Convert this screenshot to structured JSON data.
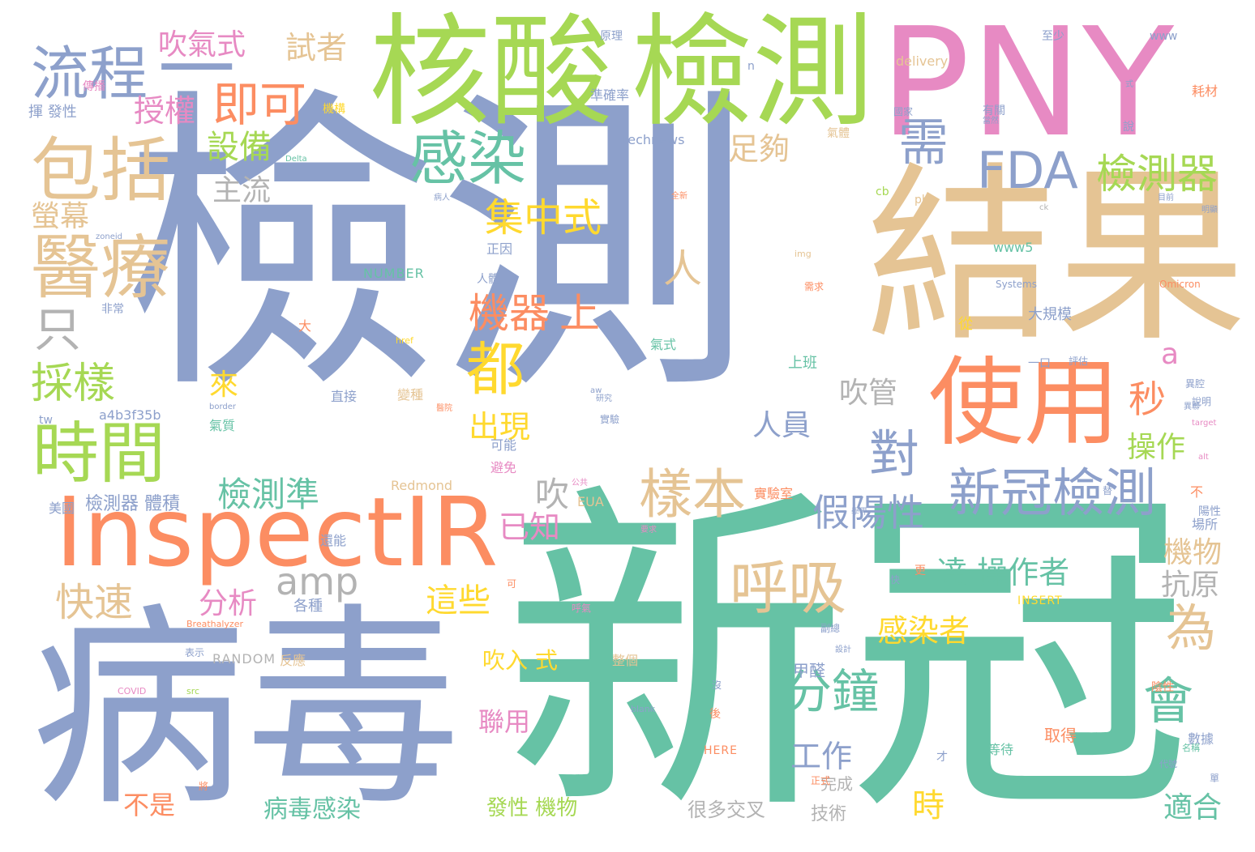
{
  "palette": {
    "blue": "#8da0cb",
    "green": "#66c2a5",
    "orange": "#fc8d62",
    "lime": "#a6d854",
    "tan": "#e5c494",
    "pink": "#e78ac3",
    "yellow": "#ffd92f",
    "gray": "#b3b3b3"
  },
  "words": [
    {
      "text": "檢測",
      "color": "blue"
    },
    {
      "text": "新冠",
      "color": "green"
    },
    {
      "text": "病毒",
      "color": "blue"
    },
    {
      "text": "結果",
      "color": "tan"
    },
    {
      "text": "PNY",
      "color": "pink"
    },
    {
      "text": "核酸",
      "color": "lime"
    },
    {
      "text": "檢測",
      "color": "lime"
    },
    {
      "text": "InspectIR",
      "color": "orange"
    },
    {
      "text": "使用",
      "color": "orange"
    },
    {
      "text": "包括",
      "color": "tan"
    },
    {
      "text": "醫療",
      "color": "tan"
    },
    {
      "text": "流程",
      "color": "blue"
    },
    {
      "text": "一",
      "color": "blue"
    },
    {
      "text": "時間",
      "color": "lime"
    },
    {
      "text": "新冠檢測",
      "color": "blue"
    },
    {
      "text": "感染",
      "color": "green"
    },
    {
      "text": "FDA",
      "color": "blue"
    },
    {
      "text": "檢測器",
      "color": "lime"
    },
    {
      "text": "樣本",
      "color": "tan"
    },
    {
      "text": "呼吸",
      "color": "tan"
    },
    {
      "text": "分鐘",
      "color": "green"
    },
    {
      "text": "即可",
      "color": "orange"
    },
    {
      "text": "需",
      "color": "blue"
    },
    {
      "text": "都",
      "color": "yellow"
    },
    {
      "text": "對",
      "color": "blue"
    },
    {
      "text": "會",
      "color": "green"
    },
    {
      "text": "為",
      "color": "tan"
    },
    {
      "text": "只",
      "color": "gray"
    },
    {
      "text": "人",
      "color": "tan"
    },
    {
      "text": "集中式",
      "color": "yellow"
    },
    {
      "text": "機器",
      "color": "orange"
    },
    {
      "text": "上",
      "color": "orange"
    },
    {
      "text": "採樣",
      "color": "lime"
    },
    {
      "text": "快速",
      "color": "tan"
    },
    {
      "text": "amp",
      "color": "gray"
    },
    {
      "text": "假陽性",
      "color": "blue"
    },
    {
      "text": "檢測準",
      "color": "green"
    },
    {
      "text": "吹氣式",
      "color": "pink"
    },
    {
      "text": "試者",
      "color": "tan"
    },
    {
      "text": "授權",
      "color": "pink"
    },
    {
      "text": "設備",
      "color": "lime"
    },
    {
      "text": "足夠",
      "color": "tan"
    },
    {
      "text": "主流",
      "color": "gray"
    },
    {
      "text": "螢幕",
      "color": "tan"
    },
    {
      "text": "秒",
      "color": "orange"
    },
    {
      "text": "已知",
      "color": "pink"
    },
    {
      "text": "出現",
      "color": "yellow"
    },
    {
      "text": "吹",
      "color": "gray"
    },
    {
      "text": "吹管",
      "color": "gray"
    },
    {
      "text": "人員",
      "color": "blue"
    },
    {
      "text": "來",
      "color": "yellow"
    },
    {
      "text": "分析",
      "color": "pink"
    },
    {
      "text": "達 操作者",
      "color": "green"
    },
    {
      "text": "機物",
      "color": "tan"
    },
    {
      "text": "抗原",
      "color": "gray"
    },
    {
      "text": "這些",
      "color": "yellow"
    },
    {
      "text": "感染者",
      "color": "yellow"
    },
    {
      "text": "操作",
      "color": "lime"
    },
    {
      "text": "a",
      "color": "pink"
    },
    {
      "text": "工作",
      "color": "blue"
    },
    {
      "text": "不是",
      "color": "orange"
    },
    {
      "text": "病毒感染",
      "color": "green"
    },
    {
      "text": "時",
      "color": "yellow"
    },
    {
      "text": "適合",
      "color": "green"
    },
    {
      "text": "聯用",
      "color": "pink"
    },
    {
      "text": "吹入 式",
      "color": "yellow"
    },
    {
      "text": "發性 機物",
      "color": "lime"
    },
    {
      "text": "很多交叉",
      "color": "gray"
    },
    {
      "text": "技術",
      "color": "gray"
    },
    {
      "text": "完成",
      "color": "gray"
    },
    {
      "text": "甲醛",
      "color": "blue"
    },
    {
      "text": "RANDOM",
      "color": "gray"
    },
    {
      "text": "NUMBER",
      "color": "green"
    },
    {
      "text": "Redmond",
      "color": "tan"
    },
    {
      "text": "EUA",
      "color": "tan"
    },
    {
      "text": "INSERT",
      "color": "yellow"
    },
    {
      "text": "HERE",
      "color": "orange"
    },
    {
      "text": "technews",
      "color": "blue"
    },
    {
      "text": "delivery",
      "color": "tan"
    },
    {
      "text": "www",
      "color": "blue"
    },
    {
      "text": "www5",
      "color": "green"
    },
    {
      "text": "Systems",
      "color": "blue"
    },
    {
      "text": "Omicron",
      "color": "orange"
    },
    {
      "text": "a4b3f35b",
      "color": "blue"
    },
    {
      "text": "Breathalyzer",
      "color": "orange"
    },
    {
      "text": "COVID",
      "color": "pink"
    },
    {
      "text": "src",
      "color": "lime"
    },
    {
      "text": "blank",
      "color": "blue"
    },
    {
      "text": "php",
      "color": "tan"
    },
    {
      "text": "img",
      "color": "tan"
    },
    {
      "text": "href",
      "color": "yellow"
    },
    {
      "text": "border",
      "color": "blue"
    },
    {
      "text": "zoneid",
      "color": "blue"
    },
    {
      "text": "target",
      "color": "pink"
    },
    {
      "text": "tw",
      "color": "blue"
    },
    {
      "text": "cb",
      "color": "lime"
    },
    {
      "text": "ck",
      "color": "gray"
    },
    {
      "text": "alt",
      "color": "pink"
    },
    {
      "text": "n",
      "color": "blue"
    },
    {
      "text": "aw",
      "color": "blue"
    },
    {
      "text": "Delta",
      "color": "green"
    },
    {
      "text": "美國",
      "color": "blue"
    },
    {
      "text": "檢測器 體積",
      "color": "blue"
    },
    {
      "text": "反應",
      "color": "tan"
    },
    {
      "text": "各種",
      "color": "blue"
    },
    {
      "text": "還能",
      "color": "blue"
    },
    {
      "text": "表示",
      "color": "blue"
    },
    {
      "text": "變種",
      "color": "tan"
    },
    {
      "text": "可能",
      "color": "blue"
    },
    {
      "text": "避免",
      "color": "pink"
    },
    {
      "text": "氣體",
      "color": "tan"
    },
    {
      "text": "大規模",
      "color": "blue"
    },
    {
      "text": "上班",
      "color": "green"
    },
    {
      "text": "一口",
      "color": "blue"
    },
    {
      "text": "實驗室",
      "color": "orange"
    },
    {
      "text": "取得",
      "color": "orange"
    },
    {
      "text": "等待",
      "color": "green"
    },
    {
      "text": "數據",
      "color": "blue"
    },
    {
      "text": "原理",
      "color": "blue"
    },
    {
      "text": "正因",
      "color": "blue"
    },
    {
      "text": "人體",
      "color": "blue"
    },
    {
      "text": "非常",
      "color": "blue"
    },
    {
      "text": "直接",
      "color": "blue"
    },
    {
      "text": "國家",
      "color": "blue"
    },
    {
      "text": "有關",
      "color": "blue"
    },
    {
      "text": "準確率",
      "color": "blue"
    },
    {
      "text": "從",
      "color": "yellow"
    },
    {
      "text": "揮 發性",
      "color": "blue"
    },
    {
      "text": "傳播",
      "color": "pink"
    },
    {
      "text": "機構",
      "color": "yellow"
    },
    {
      "text": "耗材",
      "color": "orange"
    },
    {
      "text": "至少",
      "color": "blue"
    },
    {
      "text": "大",
      "color": "orange"
    },
    {
      "text": "氣式",
      "color": "green"
    },
    {
      "text": "氣質",
      "color": "green"
    },
    {
      "text": "才",
      "color": "blue"
    },
    {
      "text": "不",
      "color": "orange"
    },
    {
      "text": "後",
      "color": "orange"
    },
    {
      "text": "沒",
      "color": "blue"
    },
    {
      "text": "實驗",
      "color": "blue"
    },
    {
      "text": "整個",
      "color": "tan"
    },
    {
      "text": "呼氣",
      "color": "pink"
    },
    {
      "text": "陰性",
      "color": "orange"
    },
    {
      "text": "陽性",
      "color": "blue"
    },
    {
      "text": "場所",
      "color": "blue"
    },
    {
      "text": "評估",
      "color": "blue"
    },
    {
      "text": "代號",
      "color": "blue"
    },
    {
      "text": "名稱",
      "color": "green"
    },
    {
      "text": "說",
      "color": "blue"
    },
    {
      "text": "可",
      "color": "orange"
    },
    {
      "text": "式",
      "color": "blue"
    },
    {
      "text": "異腔",
      "color": "blue"
    },
    {
      "text": "說明",
      "color": "blue"
    },
    {
      "text": "公共",
      "color": "pink"
    },
    {
      "text": "醫院",
      "color": "orange"
    },
    {
      "text": "正式",
      "color": "orange"
    },
    {
      "text": "副總",
      "color": "blue"
    },
    {
      "text": "要求",
      "color": "pink"
    },
    {
      "text": "研究",
      "color": "blue"
    },
    {
      "text": "更",
      "color": "orange"
    },
    {
      "text": "快",
      "color": "blue"
    },
    {
      "text": "需求",
      "color": "orange"
    },
    {
      "text": "學界",
      "color": "blue"
    },
    {
      "text": "目前",
      "color": "blue"
    },
    {
      "text": "當然",
      "color": "blue"
    },
    {
      "text": "病人",
      "color": "blue"
    },
    {
      "text": "全新",
      "color": "orange"
    },
    {
      "text": "明顯",
      "color": "blue"
    },
    {
      "text": "異聯",
      "color": "blue"
    },
    {
      "text": "設計",
      "color": "blue"
    },
    {
      "text": "單",
      "color": "blue"
    },
    {
      "text": "將",
      "color": "orange"
    },
    {
      "text": "替",
      "color": "blue"
    }
  ]
}
